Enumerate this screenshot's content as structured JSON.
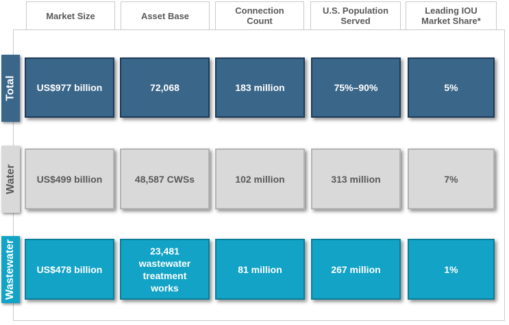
{
  "headers": [
    "Market Size",
    "Asset Base",
    "Connection\nCount",
    "U.S. Population\nServed",
    "Leading IOU\nMarket Share*"
  ],
  "rows": [
    {
      "label": "Total",
      "cells": [
        "US$977 billion",
        "72,068",
        "183 million",
        "75%–90%",
        "5%"
      ]
    },
    {
      "label": "Water",
      "cells": [
        "US$499 billion",
        "48,587 CWSs",
        "102 million",
        "313 million",
        "7%"
      ]
    },
    {
      "label": "Wastewater",
      "cells": [
        "US$478 billion",
        "23,481\nwastewater\ntreatment\nworks",
        "81 million",
        "267 million",
        "1%"
      ]
    }
  ],
  "colors": {
    "total": "#3a6689",
    "water": "#d9d9d9",
    "wastewater": "#12a3c6"
  }
}
